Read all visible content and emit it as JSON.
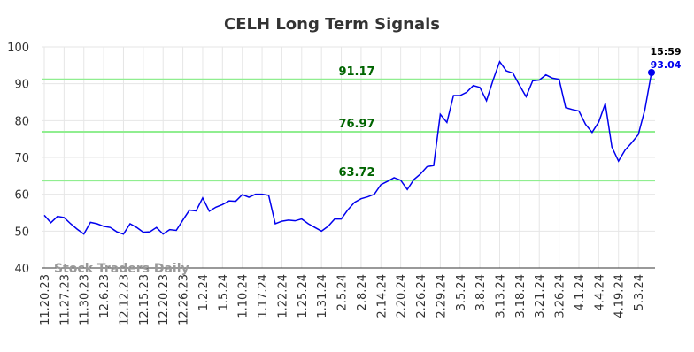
{
  "chart_data": {
    "type": "line",
    "title": "CELH Long Term Signals",
    "categories": [
      "11.20.23",
      null,
      null,
      "11.27.23",
      null,
      null,
      "11.30.23",
      null,
      null,
      "12.6.23",
      null,
      null,
      "12.12.23",
      null,
      null,
      "12.15.23",
      null,
      null,
      "12.20.23",
      null,
      null,
      "12.26.23",
      null,
      null,
      "1.2.24",
      null,
      null,
      "1.5.24",
      null,
      null,
      "1.10.24",
      null,
      null,
      "1.17.24",
      null,
      null,
      "1.22.24",
      null,
      null,
      "1.25.24",
      null,
      null,
      "1.31.24",
      null,
      null,
      "2.5.24",
      null,
      null,
      "2.8.24",
      null,
      null,
      "2.14.24",
      null,
      null,
      "2.20.24",
      null,
      null,
      "2.26.24",
      null,
      null,
      "2.29.24",
      null,
      null,
      "3.5.24",
      null,
      null,
      "3.8.24",
      null,
      null,
      "3.13.24",
      null,
      null,
      "3.18.24",
      null,
      null,
      "3.21.24",
      null,
      null,
      "3.26.24",
      null,
      null,
      "4.1.24",
      null,
      null,
      "4.4.24",
      null,
      null,
      "4.19.24",
      null,
      null,
      "5.3.24",
      null,
      null
    ],
    "series": [
      {
        "name": "CELH",
        "color": "#0000ee",
        "values": [
          54.3,
          52.3,
          54,
          53.7,
          52,
          50.5,
          49.2,
          52.4,
          52,
          51.3,
          51,
          49.8,
          49.2,
          52,
          51,
          49.7,
          49.8,
          51,
          49.2,
          50.4,
          50.2,
          53,
          55.7,
          55.5,
          59,
          55.4,
          56.5,
          57.2,
          58.2,
          58.1,
          59.9,
          59.2,
          60,
          60,
          59.7,
          52,
          52.7,
          53,
          52.8,
          53.3,
          52,
          51,
          50,
          51.3,
          53.3,
          53.3,
          55.8,
          57.8,
          58.8,
          59.3,
          60,
          62.6,
          63.5,
          64.5,
          63.8,
          61.3,
          64,
          65.5,
          67.5,
          67.8,
          81.7,
          79.5,
          86.8,
          86.8,
          87.7,
          89.5,
          89,
          85.4,
          91,
          96,
          93.5,
          92.9,
          89.6,
          86.5,
          90.8,
          91,
          92.4,
          91.5,
          91.2,
          83.5,
          83,
          82.6,
          79,
          76.8,
          79.6,
          84.6,
          72.8,
          69,
          72,
          74,
          76.2,
          83,
          93.04
        ]
      }
    ],
    "last_time": "15:59",
    "hlines": [
      91.17,
      76.97,
      63.72
    ],
    "hline_color": "#90ee90",
    "hline_label_color": "#006400",
    "watermark": "Stock Traders Daily",
    "ylim": [
      40,
      100
    ],
    "yticks": [
      40,
      50,
      60,
      70,
      80,
      90,
      100
    ],
    "grid": true
  }
}
